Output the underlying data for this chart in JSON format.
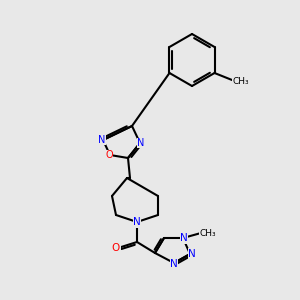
{
  "bg_color": "#e8e8e8",
  "bond_color": "#000000",
  "bond_width": 1.5,
  "atom_colors": {
    "N": "#0000ff",
    "O": "#ff0000",
    "C": "#000000"
  },
  "font_size_atom": 8,
  "font_size_methyl": 7
}
